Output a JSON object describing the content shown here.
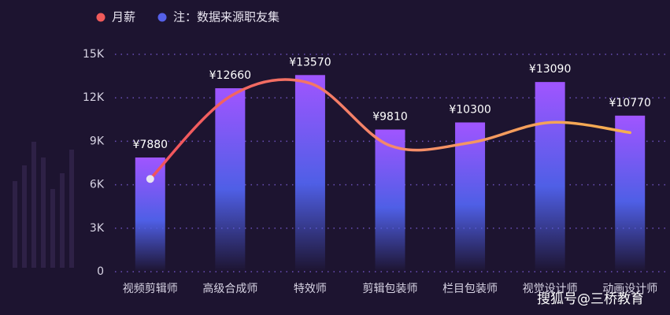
{
  "chart_data": {
    "type": "bar",
    "categories": [
      "视频剪辑师",
      "高级合成师",
      "特效师",
      "剪辑包装师",
      "栏目包装师",
      "视觉设计师",
      "动画设计师"
    ],
    "series": [
      {
        "name": "月薪",
        "type": "line",
        "color": "#f05a5a",
        "values": [
          6400,
          12100,
          13000,
          8700,
          8900,
          10300,
          9600
        ]
      },
      {
        "name": "注：数据来源职友集",
        "type": "bar",
        "color": "#5560e8",
        "values": [
          7880,
          12660,
          13570,
          9810,
          10300,
          13090,
          10770
        ],
        "value_labels": [
          "¥7880",
          "¥12660",
          "¥13570",
          "¥9810",
          "¥10300",
          "¥13090",
          "¥10770"
        ]
      }
    ],
    "ylim": [
      0,
      15000
    ],
    "yticks": [
      0,
      {
        "value": 3000,
        "label": "3K"
      },
      {
        "value": 6000,
        "label": "6K"
      },
      {
        "value": 9000,
        "label": "9K"
      },
      {
        "value": 12000,
        "label": "12K"
      },
      {
        "value": 15000,
        "label": "15K"
      }
    ],
    "grid": true,
    "watermark": "搜狐号@三桥教育"
  }
}
